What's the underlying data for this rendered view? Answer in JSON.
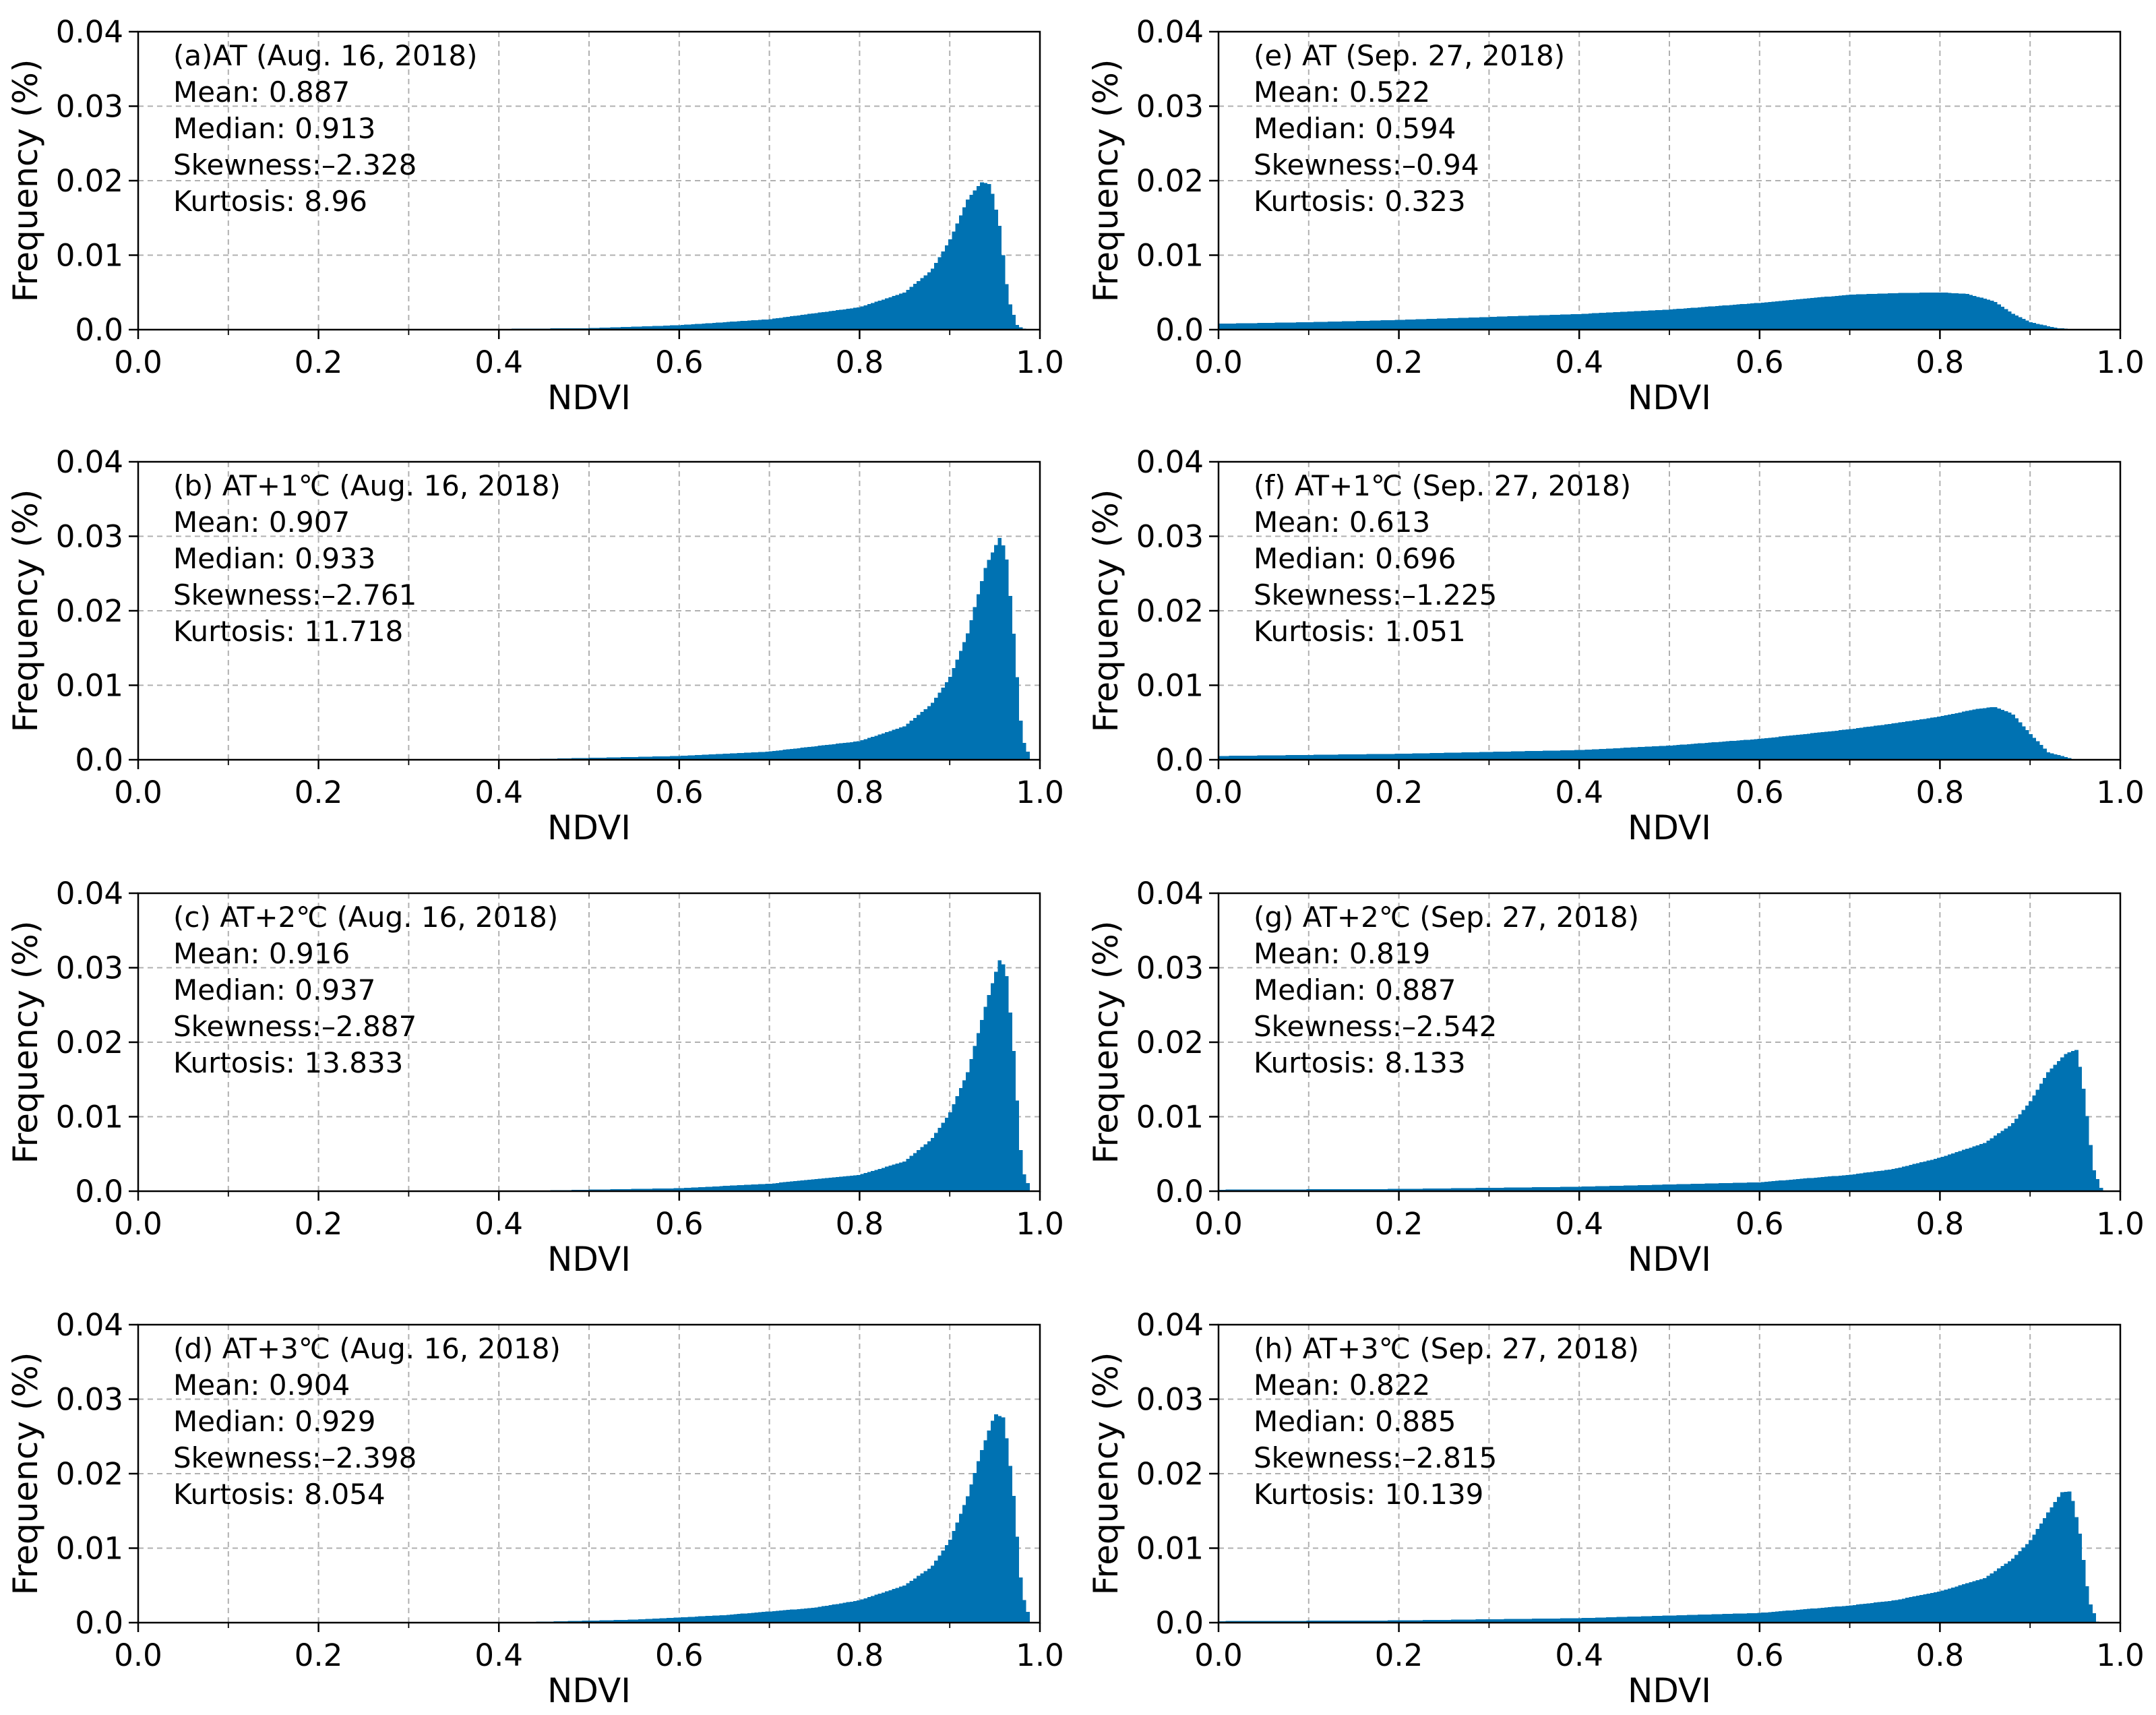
{
  "chart_data": [
    {
      "id": "a",
      "type": "bar",
      "xlabel": "NDVI",
      "ylabel": "Frequency (%)",
      "xlim": [
        0,
        1
      ],
      "ylim": [
        0,
        0.04
      ],
      "xticks": [
        "0.0",
        "0.2",
        "0.4",
        "0.6",
        "0.8",
        "1.0"
      ],
      "yticks": [
        "0.0",
        "0.01",
        "0.02",
        "0.03",
        "0.04"
      ],
      "annotation": {
        "title": "(a)AT (Aug. 16, 2018)",
        "mean": "Mean: 0.887",
        "median": "Median: 0.913",
        "skewness": "Skewness:–2.328",
        "kurtosis": "Kurtosis: 8.96"
      },
      "color": "#0072b2",
      "x": [
        0.0,
        0.3,
        0.5,
        0.6,
        0.7,
        0.8,
        0.85,
        0.88,
        0.9,
        0.92,
        0.935,
        0.945,
        0.955,
        0.965,
        0.975,
        0.985
      ],
      "y": [
        0,
        0,
        0.0002,
        0.0006,
        0.0014,
        0.003,
        0.005,
        0.008,
        0.012,
        0.0175,
        0.0198,
        0.0195,
        0.014,
        0.004,
        0.0005,
        0
      ]
    },
    {
      "id": "b",
      "type": "bar",
      "xlabel": "NDVI",
      "ylabel": "Frequency (%)",
      "xlim": [
        0,
        1
      ],
      "ylim": [
        0,
        0.04
      ],
      "xticks": [
        "0.0",
        "0.2",
        "0.4",
        "0.6",
        "0.8",
        "1.0"
      ],
      "yticks": [
        "0.0",
        "0.01",
        "0.02",
        "0.03",
        "0.04"
      ],
      "annotation": {
        "title": "(b) AT+1℃ (Aug. 16, 2018)",
        "mean": "Mean: 0.907",
        "median": "Median: 0.933",
        "skewness": "Skewness:–2.761",
        "kurtosis": "Kurtosis: 11.718"
      },
      "color": "#0072b2",
      "x": [
        0.0,
        0.4,
        0.6,
        0.7,
        0.8,
        0.85,
        0.88,
        0.9,
        0.92,
        0.94,
        0.955,
        0.962,
        0.97,
        0.98,
        0.99
      ],
      "y": [
        0,
        0,
        0.0005,
        0.0011,
        0.0025,
        0.0045,
        0.0075,
        0.011,
        0.017,
        0.026,
        0.0298,
        0.028,
        0.018,
        0.003,
        0
      ]
    },
    {
      "id": "c",
      "type": "bar",
      "xlabel": "NDVI",
      "ylabel": "Frequency (%)",
      "xlim": [
        0,
        1
      ],
      "ylim": [
        0,
        0.04
      ],
      "xticks": [
        "0.0",
        "0.2",
        "0.4",
        "0.6",
        "0.8",
        "1.0"
      ],
      "yticks": [
        "0.0",
        "0.01",
        "0.02",
        "0.03",
        "0.04"
      ],
      "annotation": {
        "title": "(c) AT+2℃ (Aug. 16, 2018)",
        "mean": "Mean: 0.916",
        "median": "Median: 0.937",
        "skewness": "Skewness:–2.887",
        "kurtosis": "Kurtosis: 13.833"
      },
      "color": "#0072b2",
      "x": [
        0.0,
        0.4,
        0.6,
        0.7,
        0.8,
        0.85,
        0.88,
        0.9,
        0.92,
        0.94,
        0.955,
        0.962,
        0.97,
        0.98,
        0.99
      ],
      "y": [
        0,
        0,
        0.0004,
        0.001,
        0.0022,
        0.004,
        0.007,
        0.0105,
        0.016,
        0.025,
        0.031,
        0.03,
        0.02,
        0.003,
        0
      ]
    },
    {
      "id": "d",
      "type": "bar",
      "xlabel": "NDVI",
      "ylabel": "Frequency (%)",
      "xlim": [
        0,
        1
      ],
      "ylim": [
        0,
        0.04
      ],
      "xticks": [
        "0.0",
        "0.2",
        "0.4",
        "0.6",
        "0.8",
        "1.0"
      ],
      "yticks": [
        "0.0",
        "0.01",
        "0.02",
        "0.03",
        "0.04"
      ],
      "annotation": {
        "title": "(d) AT+3℃ (Aug. 16, 2018)",
        "mean": "Mean: 0.904",
        "median": "Median: 0.929",
        "skewness": "Skewness:–2.398",
        "kurtosis": "Kurtosis: 8.054"
      },
      "color": "#0072b2",
      "x": [
        0.0,
        0.4,
        0.55,
        0.65,
        0.75,
        0.8,
        0.85,
        0.88,
        0.9,
        0.92,
        0.935,
        0.95,
        0.96,
        0.97,
        0.98,
        0.99
      ],
      "y": [
        0,
        0,
        0.0004,
        0.001,
        0.002,
        0.003,
        0.005,
        0.0075,
        0.011,
        0.017,
        0.023,
        0.028,
        0.0275,
        0.018,
        0.004,
        0
      ]
    },
    {
      "id": "e",
      "type": "bar",
      "xlabel": "NDVI",
      "ylabel": "Frequency (%)",
      "xlim": [
        0,
        1
      ],
      "ylim": [
        0,
        0.04
      ],
      "xticks": [
        "0.0",
        "0.2",
        "0.4",
        "0.6",
        "0.8",
        "1.0"
      ],
      "yticks": [
        "0.0",
        "0.01",
        "0.02",
        "0.03",
        "0.04"
      ],
      "annotation": {
        "title": "(e) AT (Sep. 27, 2018)",
        "mean": "Mean: 0.522",
        "median": "Median: 0.594",
        "skewness": "Skewness:–0.94",
        "kurtosis": "Kurtosis: 0.323"
      },
      "color": "#0072b2",
      "x": [
        0.0,
        0.1,
        0.2,
        0.3,
        0.4,
        0.5,
        0.6,
        0.7,
        0.75,
        0.8,
        0.83,
        0.86,
        0.88,
        0.9,
        0.93,
        0.96
      ],
      "y": [
        0.0008,
        0.001,
        0.0013,
        0.0017,
        0.0021,
        0.0027,
        0.0036,
        0.0047,
        0.0049,
        0.005,
        0.0048,
        0.0038,
        0.0022,
        0.001,
        0.0002,
        0
      ]
    },
    {
      "id": "f",
      "type": "bar",
      "xlabel": "NDVI",
      "ylabel": "Frequency (%)",
      "xlim": [
        0,
        1
      ],
      "ylim": [
        0,
        0.04
      ],
      "xticks": [
        "0.0",
        "0.2",
        "0.4",
        "0.6",
        "0.8",
        "1.0"
      ],
      "yticks": [
        "0.0",
        "0.01",
        "0.02",
        "0.03",
        "0.04"
      ],
      "annotation": {
        "title": "(f) AT+1℃ (Sep. 27, 2018)",
        "mean": "Mean: 0.613",
        "median": "Median: 0.696",
        "skewness": "Skewness:–1.225",
        "kurtosis": "Kurtosis: 1.051"
      },
      "color": "#0072b2",
      "x": [
        0.0,
        0.2,
        0.4,
        0.5,
        0.6,
        0.7,
        0.75,
        0.8,
        0.84,
        0.86,
        0.88,
        0.9,
        0.92,
        0.95
      ],
      "y": [
        0.0005,
        0.0008,
        0.0013,
        0.0019,
        0.0028,
        0.0041,
        0.0049,
        0.0058,
        0.0068,
        0.0071,
        0.0062,
        0.0035,
        0.001,
        0
      ]
    },
    {
      "id": "g",
      "type": "bar",
      "xlabel": "NDVI",
      "ylabel": "Frequency (%)",
      "xlim": [
        0,
        1
      ],
      "ylim": [
        0,
        0.04
      ],
      "xticks": [
        "0.0",
        "0.2",
        "0.4",
        "0.6",
        "0.8",
        "1.0"
      ],
      "yticks": [
        "0.0",
        "0.01",
        "0.02",
        "0.03",
        "0.04"
      ],
      "annotation": {
        "title": "(g) AT+2℃ (Sep. 27, 2018)",
        "mean": "Mean: 0.819",
        "median": "Median: 0.887",
        "skewness": "Skewness:–2.542",
        "kurtosis": "Kurtosis: 8.133"
      },
      "color": "#0072b2",
      "x": [
        0.0,
        0.2,
        0.4,
        0.6,
        0.7,
        0.75,
        0.8,
        0.85,
        0.88,
        0.9,
        0.92,
        0.94,
        0.952,
        0.96,
        0.97,
        0.98
      ],
      "y": [
        0.0002,
        0.0003,
        0.0006,
        0.0012,
        0.0022,
        0.003,
        0.0045,
        0.0065,
        0.009,
        0.012,
        0.016,
        0.0185,
        0.019,
        0.013,
        0.003,
        0
      ]
    },
    {
      "id": "h",
      "type": "bar",
      "xlabel": "NDVI",
      "ylabel": "Frequency (%)",
      "xlim": [
        0,
        1
      ],
      "ylim": [
        0,
        0.04
      ],
      "xticks": [
        "0.0",
        "0.2",
        "0.4",
        "0.6",
        "0.8",
        "1.0"
      ],
      "yticks": [
        "0.0",
        "0.01",
        "0.02",
        "0.03",
        "0.04"
      ],
      "annotation": {
        "title": "(h) AT+3℃ (Sep. 27, 2018)",
        "mean": "Mean: 0.822",
        "median": "Median: 0.885",
        "skewness": "Skewness:–2.815",
        "kurtosis": "Kurtosis: 10.139"
      },
      "color": "#0072b2",
      "x": [
        0.0,
        0.2,
        0.4,
        0.6,
        0.7,
        0.75,
        0.8,
        0.85,
        0.88,
        0.9,
        0.92,
        0.935,
        0.945,
        0.955,
        0.965,
        0.975
      ],
      "y": [
        0.0002,
        0.0003,
        0.0006,
        0.0013,
        0.0023,
        0.003,
        0.0042,
        0.006,
        0.0085,
        0.011,
        0.0148,
        0.0175,
        0.0176,
        0.012,
        0.003,
        0
      ]
    }
  ]
}
